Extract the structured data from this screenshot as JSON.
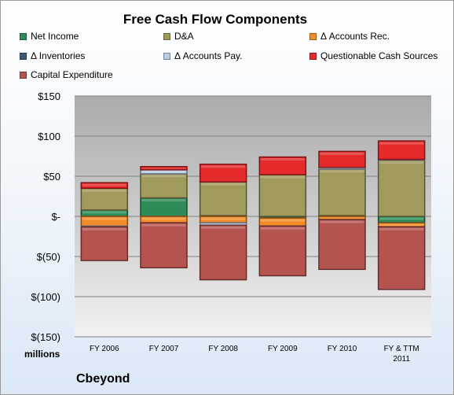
{
  "chart_data": {
    "type": "bar",
    "stacked": true,
    "title": "Free Cash Flow Components",
    "units_label": "millions",
    "company": "Cbeyond",
    "categories": [
      "FY 2006",
      "FY 2007",
      "FY 2008",
      "FY 2009",
      "FY 2010",
      "FY & TTM|2011"
    ],
    "ylim": [
      -150,
      150
    ],
    "yticks": [
      150,
      100,
      50,
      0,
      -50,
      -100,
      -150
    ],
    "ytick_labels": [
      "$150",
      "$100",
      "$50",
      "$-",
      "$(50)",
      "$(100)",
      "$(150)"
    ],
    "legend_placement": "top",
    "series": [
      {
        "name": "Net Income",
        "color": "#2e8b57",
        "values": [
          8,
          23,
          1,
          -2,
          1,
          -8
        ]
      },
      {
        "name": "D&A",
        "color": "#a09a5c",
        "values": [
          27,
          30,
          42,
          52,
          58,
          70
        ]
      },
      {
        "name": "Δ Accounts Rec.",
        "color": "#f28c28",
        "values": [
          -12,
          -8,
          -8,
          -10,
          -4,
          -5
        ]
      },
      {
        "name": "Δ Inventories",
        "color": "#3c5a7a",
        "values": [
          0,
          0,
          0,
          0,
          0,
          0
        ]
      },
      {
        "name": "Δ Accounts Pay.",
        "color": "#b8cce4",
        "values": [
          -1,
          5,
          -3,
          0,
          2,
          1
        ]
      },
      {
        "name": "Questionable Cash Sources",
        "color": "#e42a2a",
        "values": [
          7,
          4,
          22,
          22,
          20,
          23
        ]
      },
      {
        "name": "Capital Expenditure",
        "color": "#b5534f",
        "values": [
          -42,
          -56,
          -68,
          -62,
          -62,
          -78
        ]
      }
    ]
  }
}
